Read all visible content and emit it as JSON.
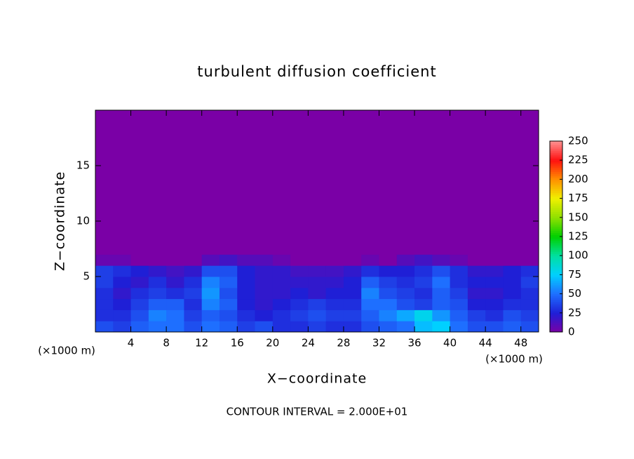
{
  "chart_data": {
    "type": "heatmap",
    "title": "turbulent diffusion coefficient",
    "xlabel": "X−coordinate",
    "ylabel": "Z−coordinate",
    "x_unit_left": "(×1000 m)",
    "x_unit_right": "(×1000 m)",
    "footnote": "CONTOUR INTERVAL = 2.000E+01",
    "xlim": [
      0,
      50
    ],
    "ylim": [
      0,
      20
    ],
    "xticks": [
      4,
      8,
      12,
      16,
      20,
      24,
      28,
      32,
      36,
      40,
      44,
      48
    ],
    "yticks": [
      5,
      10,
      15
    ],
    "x_edges": [
      0,
      2,
      4,
      6,
      8,
      10,
      12,
      14,
      16,
      18,
      20,
      22,
      24,
      26,
      28,
      30,
      32,
      34,
      36,
      38,
      40,
      42,
      44,
      46,
      48,
      50
    ],
    "z_edges": [
      0,
      1,
      2,
      3,
      4,
      5,
      6,
      7,
      20
    ],
    "values": [
      [
        40,
        35,
        45,
        50,
        50,
        40,
        50,
        45,
        35,
        40,
        30,
        30,
        35,
        30,
        30,
        40,
        45,
        50,
        70,
        75,
        50,
        40,
        40,
        45,
        40
      ],
      [
        30,
        30,
        40,
        55,
        50,
        35,
        45,
        40,
        30,
        25,
        30,
        35,
        40,
        35,
        35,
        45,
        55,
        65,
        80,
        60,
        45,
        35,
        30,
        40,
        35
      ],
      [
        30,
        25,
        35,
        45,
        45,
        30,
        55,
        45,
        25,
        20,
        25,
        30,
        35,
        30,
        30,
        50,
        50,
        40,
        35,
        45,
        40,
        25,
        25,
        30,
        30
      ],
      [
        30,
        20,
        30,
        35,
        30,
        35,
        60,
        40,
        25,
        20,
        20,
        25,
        20,
        25,
        25,
        55,
        40,
        35,
        30,
        45,
        35,
        20,
        20,
        25,
        30
      ],
      [
        35,
        25,
        20,
        30,
        20,
        30,
        55,
        45,
        25,
        20,
        20,
        20,
        20,
        20,
        25,
        45,
        35,
        30,
        35,
        50,
        30,
        25,
        25,
        25,
        35
      ],
      [
        35,
        30,
        25,
        20,
        15,
        20,
        40,
        40,
        25,
        20,
        20,
        15,
        15,
        15,
        20,
        30,
        25,
        25,
        30,
        40,
        30,
        20,
        20,
        25,
        30
      ],
      [
        5,
        5,
        0,
        0,
        0,
        0,
        10,
        15,
        10,
        10,
        5,
        0,
        0,
        0,
        0,
        5,
        0,
        10,
        15,
        10,
        5,
        0,
        0,
        0,
        0
      ],
      [
        0,
        0,
        0,
        0,
        0,
        0,
        0,
        0,
        0,
        0,
        0,
        0,
        0,
        0,
        0,
        0,
        0,
        0,
        0,
        0,
        0,
        0,
        0,
        0,
        0
      ]
    ],
    "cticks": [
      0,
      25,
      50,
      75,
      100,
      125,
      150,
      175,
      200,
      225,
      250
    ],
    "colorscale": [
      "#7a00a6",
      "#1f1fd6",
      "#1e6fff",
      "#00d0ff",
      "#00e0a0",
      "#00d000",
      "#90e000",
      "#f0f000",
      "#ff9000",
      "#ff1010",
      "#ff9090"
    ]
  }
}
